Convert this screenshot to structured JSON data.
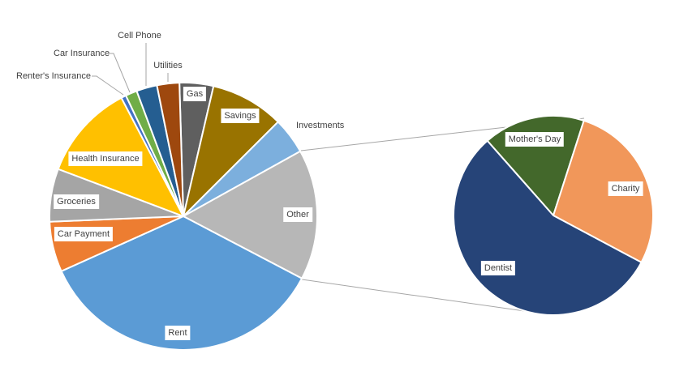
{
  "chart_data": {
    "type": "pie-of-pie",
    "title": "",
    "unit": "percent",
    "primary": [
      {
        "label": "Gas",
        "value": 4.1,
        "color": "#5f5f5f"
      },
      {
        "label": "Savings",
        "value": 8.9,
        "color": "#997300"
      },
      {
        "label": "Investments",
        "value": 4.4,
        "color": "#7cafdd"
      },
      {
        "label": "Other",
        "value": 15.8,
        "color": "#b7b7b7"
      },
      {
        "label": "Rent",
        "value": 35.6,
        "color": "#5b9bd5"
      },
      {
        "label": "Car Payment",
        "value": 6.1,
        "color": "#ed7d31"
      },
      {
        "label": "Groceries",
        "value": 6.4,
        "color": "#a5a5a5"
      },
      {
        "label": "Health Insurance",
        "value": 11.6,
        "color": "#ffc000"
      },
      {
        "label": "Renter's Insurance",
        "value": 0.6,
        "color": "#4472c4"
      },
      {
        "label": "Car Insurance",
        "value": 1.4,
        "color": "#70ad47"
      },
      {
        "label": "Cell Phone",
        "value": 2.5,
        "color": "#255e91"
      },
      {
        "label": "Utilities",
        "value": 2.7,
        "color": "#9e480e"
      }
    ],
    "secondary": [
      {
        "label": "Mother's Day",
        "value": 2.6,
        "color": "#43682b"
      },
      {
        "label": "Charity",
        "value": 4.4,
        "color": "#f1975a"
      },
      {
        "label": "Dentist",
        "value": 8.8,
        "color": "#264478"
      }
    ],
    "legend": "none"
  }
}
